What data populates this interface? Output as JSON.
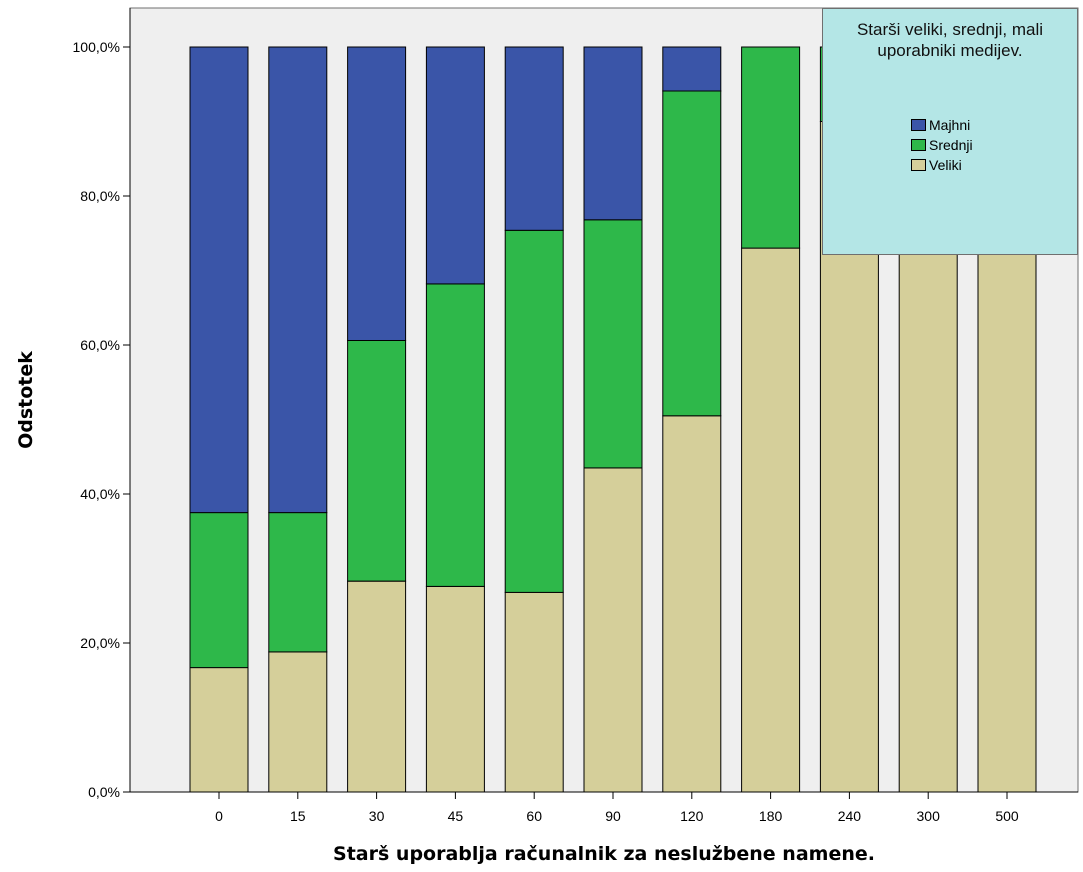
{
  "chart_data": {
    "type": "bar",
    "stacked": true,
    "categories": [
      "0",
      "15",
      "30",
      "45",
      "60",
      "90",
      "120",
      "180",
      "240",
      "300",
      "500"
    ],
    "series": [
      {
        "name": "Veliki",
        "color": "#d5cf9a",
        "values": [
          16.7,
          18.8,
          28.3,
          27.6,
          26.8,
          43.5,
          50.5,
          73.0,
          90.0,
          100.0,
          100.0
        ]
      },
      {
        "name": "Srednji",
        "color": "#2eb84a",
        "values": [
          20.8,
          18.7,
          32.3,
          40.6,
          48.6,
          33.3,
          43.6,
          27.0,
          10.0,
          0.0,
          0.0
        ]
      },
      {
        "name": "Majhni",
        "color": "#3a55a8",
        "values": [
          62.5,
          62.5,
          39.4,
          31.8,
          24.6,
          23.2,
          5.9,
          0.0,
          0.0,
          0.0,
          0.0
        ]
      }
    ],
    "xlabel": "Starš uporablja računalnik za neslužbene namene.",
    "ylabel": "Odstotek",
    "ylim": [
      0,
      100
    ],
    "yticks": [
      0,
      20,
      40,
      60,
      80,
      100
    ],
    "ytick_labels": [
      "0,0%",
      "20,0%",
      "40,0%",
      "60,0%",
      "80,0%",
      "100,0%"
    ],
    "legend": {
      "title": "Starši veliki, srednji, mali uporabniki medijev.",
      "position": "top-right",
      "order": [
        "Majhni",
        "Srednji",
        "Veliki"
      ]
    },
    "grid": false,
    "plot_background": "#efefef"
  }
}
